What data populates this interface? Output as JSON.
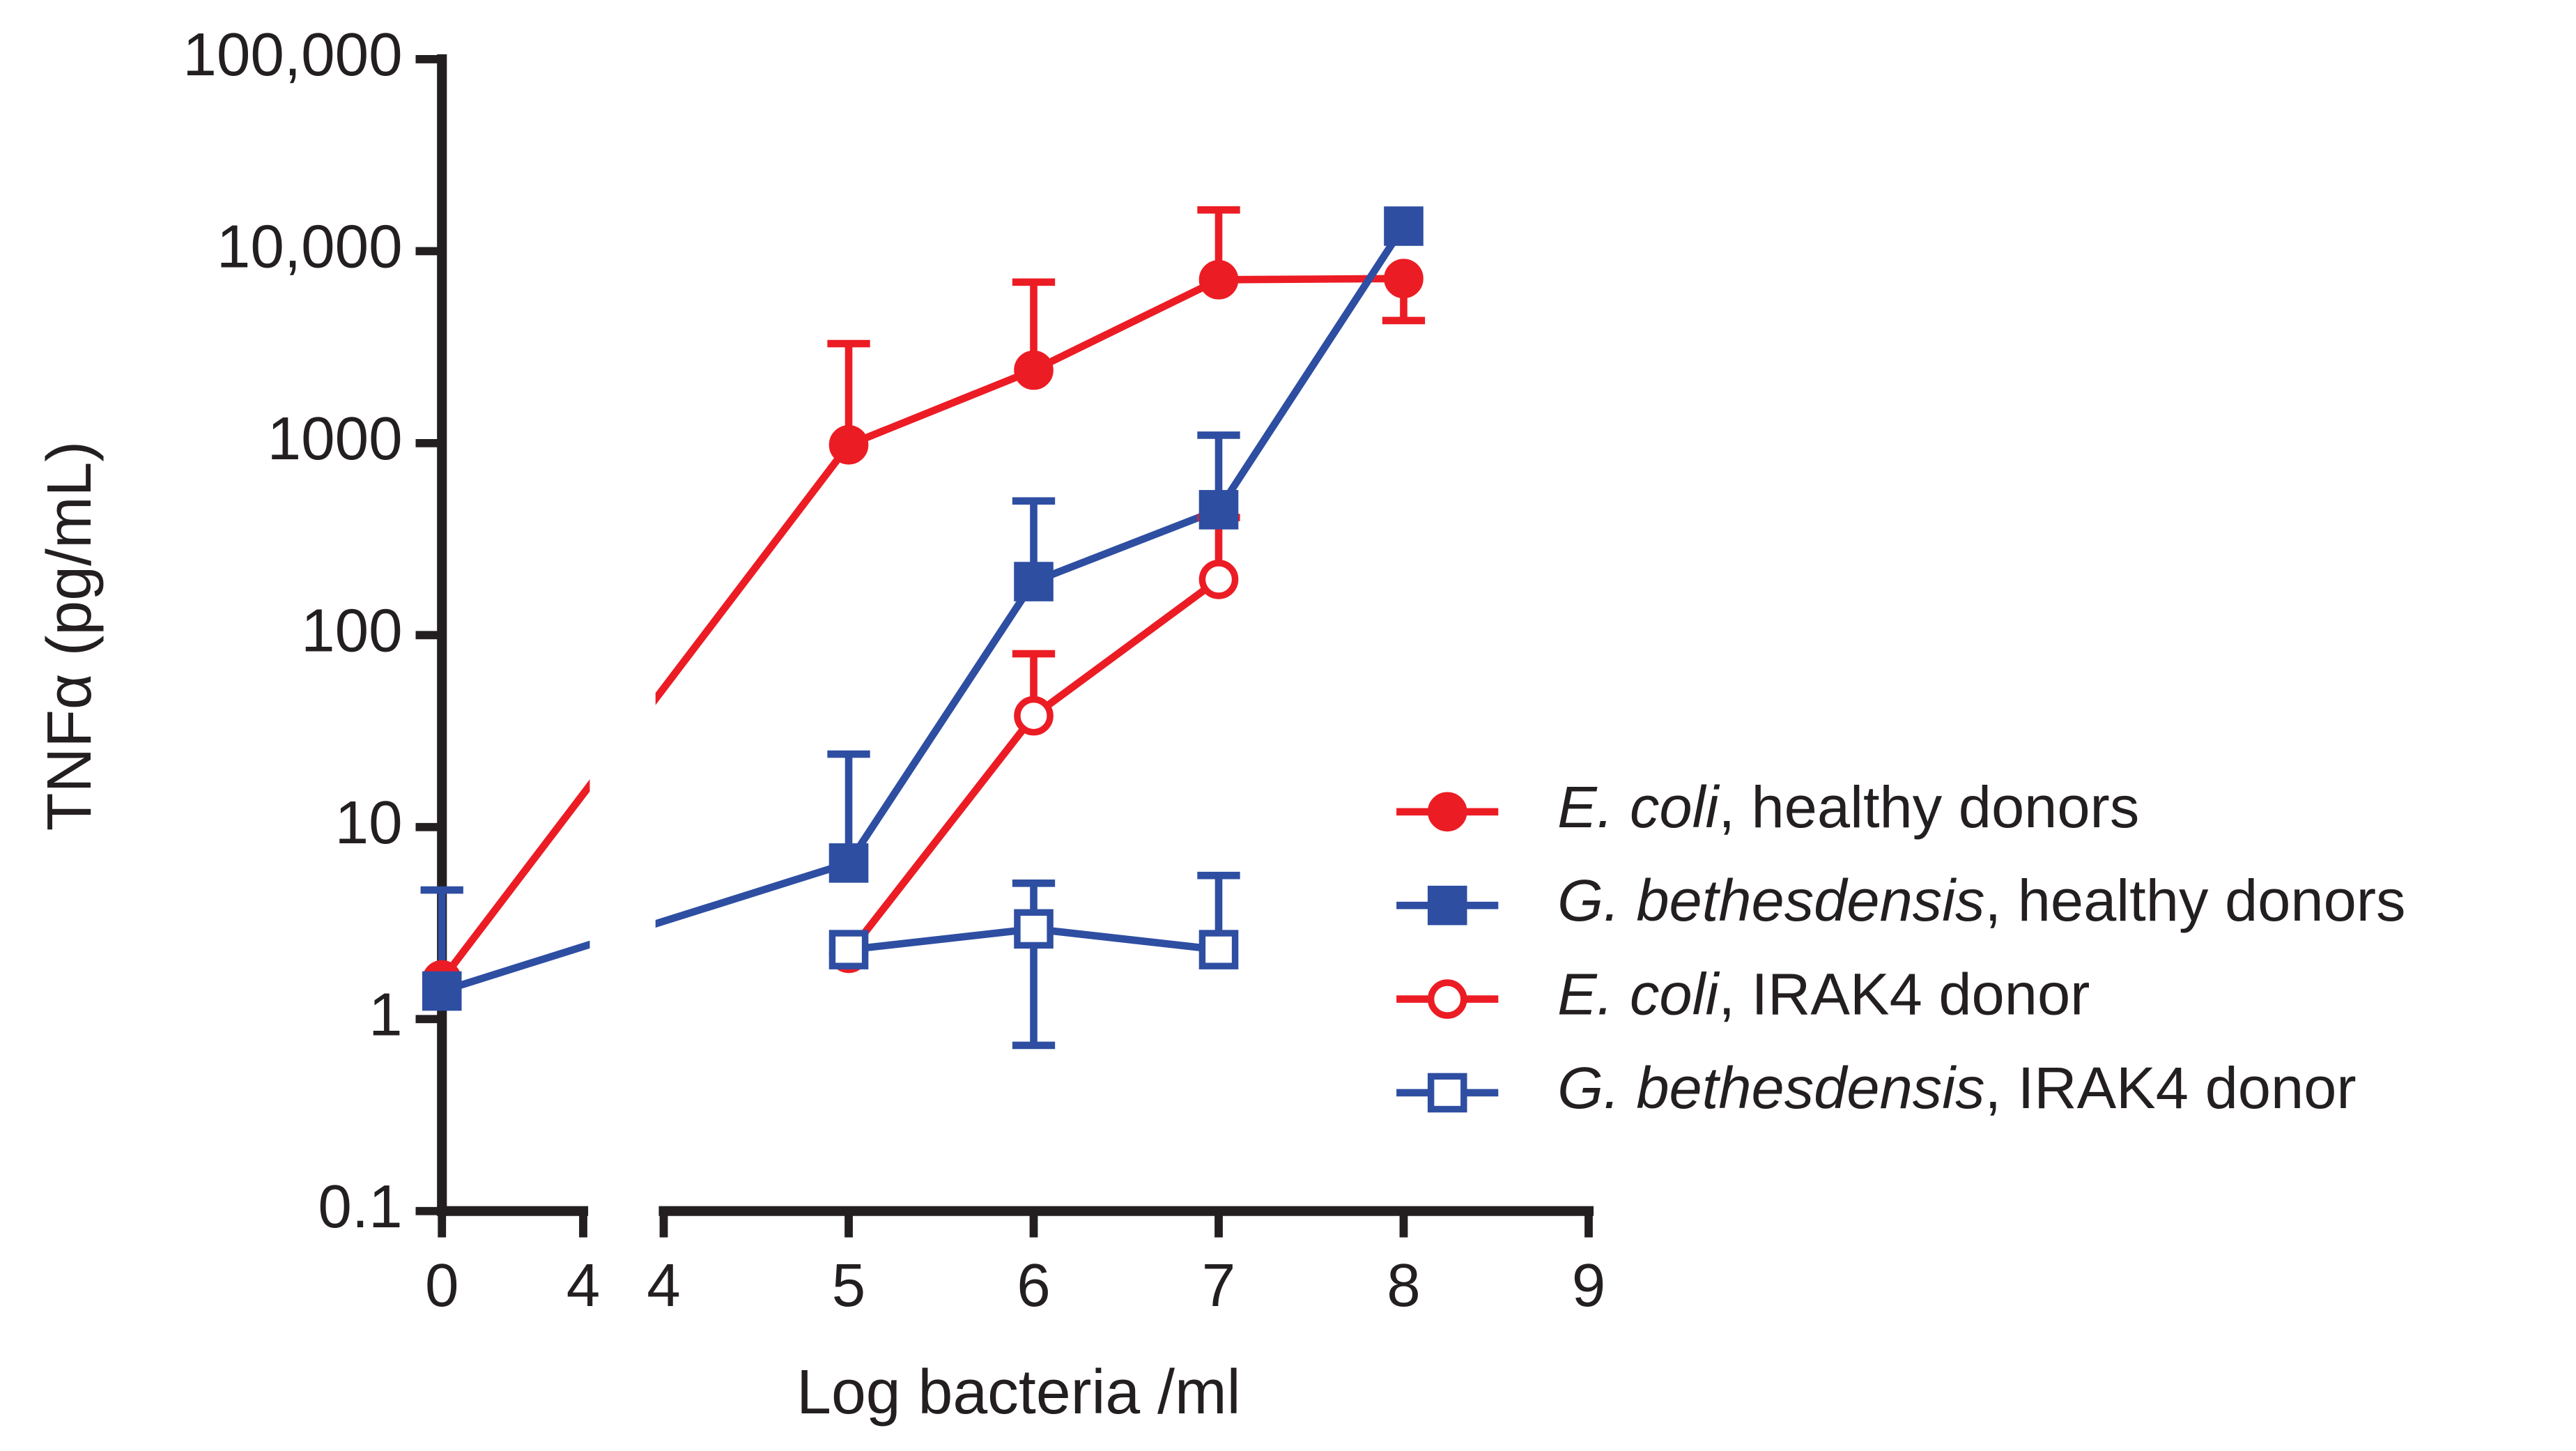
{
  "chart_data": {
    "type": "line",
    "ylabel": "TNFα (pg/mL)",
    "xlabel": "Log bacteria /ml",
    "log_y": true,
    "ylim": [
      0.1,
      100000
    ],
    "yticks": [
      0.1,
      1,
      10,
      100,
      1000,
      {
        "value": 10000,
        "label": "10,000"
      },
      {
        "value": 100000,
        "label": "100,000"
      }
    ],
    "x_segments": [
      {
        "xlim": [
          0,
          4
        ],
        "xticks": [
          0,
          4
        ]
      },
      {
        "xlim": [
          4,
          9
        ],
        "xticks": [
          4,
          5,
          6,
          7,
          8,
          9
        ]
      }
    ],
    "x": [
      0,
      5,
      6,
      7,
      8
    ],
    "series": [
      {
        "name": {
          "italic": "E. coli",
          "rest": ", healthy donors"
        },
        "color": "#ec1c24",
        "marker": "circle",
        "filled": true,
        "values": [
          1.6,
          980,
          2400,
          7100,
          7200
        ],
        "errors_up": [
          null,
          2320,
          4500,
          9300,
          null
        ],
        "errors_down": [
          null,
          null,
          null,
          null,
          2850
        ]
      },
      {
        "name": {
          "italic": "G. bethesdensis",
          "rest": ", healthy donors"
        },
        "color": "#2e4ea2",
        "marker": "square",
        "filled": true,
        "values": [
          1.4,
          6.5,
          190,
          450,
          13500
        ],
        "errors_up": [
          3.3,
          17.5,
          310,
          650,
          null
        ],
        "errors_down": [
          null,
          null,
          null,
          null,
          null
        ]
      },
      {
        "name": {
          "italic": "E. coli",
          "rest": ", IRAK4 donor"
        },
        "color": "#ec1c24",
        "marker": "circle",
        "filled": false,
        "values": [
          null,
          2.2,
          38,
          195,
          null
        ],
        "errors_up": [
          null,
          null,
          42,
          215,
          null
        ],
        "errors_down": [
          null,
          null,
          null,
          null,
          null
        ]
      },
      {
        "name": {
          "italic": "G. bethesdensis",
          "rest": ", IRAK4 donor"
        },
        "color": "#2e4ea2",
        "marker": "square",
        "filled": false,
        "values": [
          null,
          2.3,
          2.95,
          2.3,
          null
        ],
        "errors_up": [
          null,
          null,
          2.15,
          3.3,
          null
        ],
        "errors_down": [
          null,
          null,
          2.22,
          null,
          null
        ]
      }
    ]
  }
}
